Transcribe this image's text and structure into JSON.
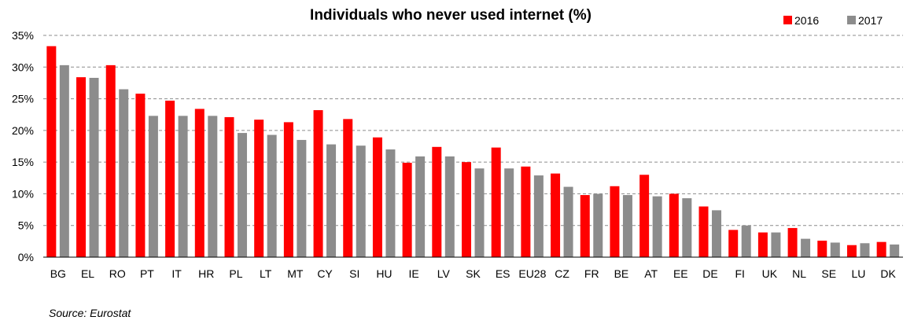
{
  "chart_data": {
    "type": "bar",
    "title": "Individuals who never used internet (%)",
    "xlabel": "",
    "ylabel": "",
    "ylim": [
      0,
      35
    ],
    "yticks": [
      "0%",
      "5%",
      "10%",
      "15%",
      "20%",
      "25%",
      "30%",
      "35%"
    ],
    "ytick_values": [
      0,
      5,
      10,
      15,
      20,
      25,
      30,
      35
    ],
    "grid": true,
    "legend_position": "top-right",
    "categories": [
      "BG",
      "EL",
      "RO",
      "PT",
      "IT",
      "HR",
      "PL",
      "LT",
      "MT",
      "CY",
      "SI",
      "HU",
      "IE",
      "LV",
      "SK",
      "ES",
      "EU28",
      "CZ",
      "FR",
      "BE",
      "AT",
      "EE",
      "DE",
      "FI",
      "UK",
      "NL",
      "SE",
      "LU",
      "DK"
    ],
    "series": [
      {
        "name": "2016",
        "color": "#ff0000",
        "values": [
          33.3,
          28.4,
          30.3,
          25.8,
          24.7,
          23.4,
          22.1,
          21.7,
          21.3,
          23.2,
          21.8,
          18.9,
          14.9,
          17.4,
          15.0,
          17.3,
          14.3,
          13.2,
          9.8,
          11.2,
          13.0,
          10.0,
          8.0,
          4.3,
          3.9,
          4.6,
          2.6,
          1.9,
          2.4
        ]
      },
      {
        "name": "2017",
        "color": "#8c8c8c",
        "values": [
          30.3,
          28.3,
          26.5,
          22.3,
          22.3,
          22.3,
          19.6,
          19.3,
          18.5,
          17.8,
          17.6,
          17.0,
          15.9,
          15.9,
          14.0,
          14.0,
          12.9,
          11.1,
          10.0,
          9.8,
          9.6,
          9.3,
          7.4,
          5.0,
          3.9,
          2.9,
          2.3,
          2.2,
          2.0
        ]
      }
    ],
    "source": "Source: Eurostat"
  }
}
